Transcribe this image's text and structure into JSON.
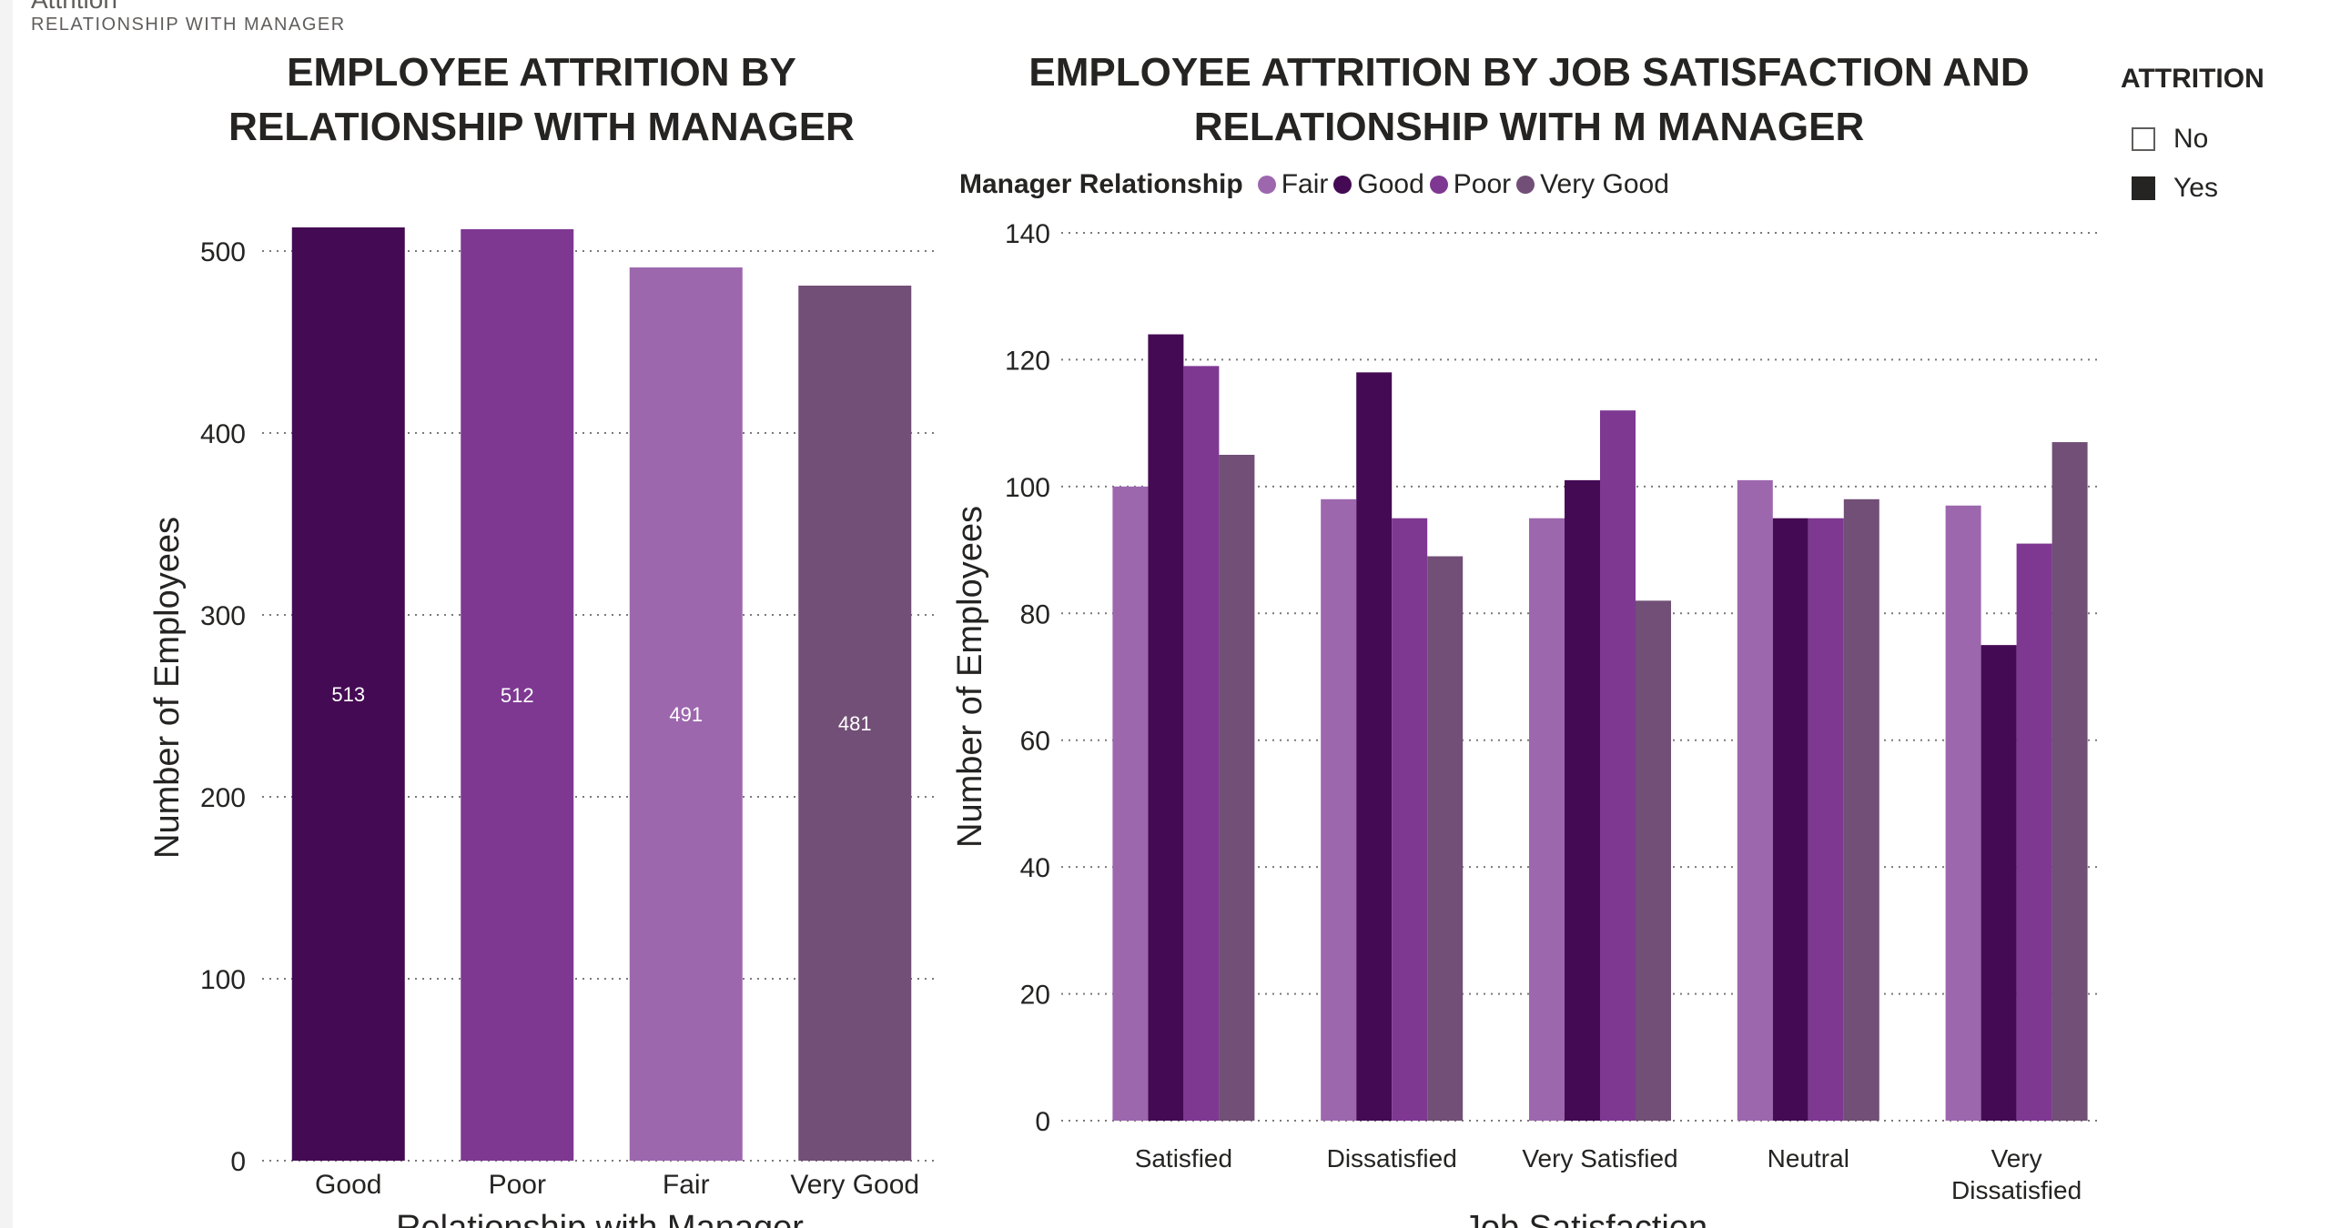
{
  "header": {
    "title": "Attrition",
    "subtitle": "RELATIONSHIP WITH MANAGER"
  },
  "attrition_slicer": {
    "title": "ATTRITION",
    "options": [
      {
        "label": "No",
        "checked": false
      },
      {
        "label": "Yes",
        "checked": true
      }
    ]
  },
  "colors": {
    "Fair": "#9d67ae",
    "Good": "#450a54",
    "Poor": "#7e3892",
    "Very Good": "#714f76"
  },
  "chart_data": [
    {
      "type": "bar",
      "title": "EMPLOYEE ATTRITION BY RELATIONSHIP WITH MANAGER",
      "xlabel": "Relationship with Manager",
      "ylabel": "Number of Employees",
      "categories": [
        "Good",
        "Poor",
        "Fair",
        "Very Good"
      ],
      "values": [
        513,
        512,
        491,
        481
      ],
      "data_labels": [
        "513",
        "512",
        "491",
        "481"
      ],
      "ylim": [
        0,
        520
      ],
      "yticks": [
        0,
        100,
        200,
        300,
        400,
        500
      ],
      "grid": true
    },
    {
      "type": "bar",
      "title": "EMPLOYEE ATTRITION BY JOB SATISFACTION AND RELATIONSHIP WITH M MANAGER",
      "xlabel": "Job Satisfaction",
      "ylabel": "Number of Employees",
      "legend_title": "Manager Relationship",
      "legend_position": "top-left",
      "categories": [
        "Satisfied",
        "Dissatisfied",
        "Very Satisfied",
        "Neutral",
        "Very Dissatisfied"
      ],
      "series": [
        {
          "name": "Fair",
          "values": [
            100,
            98,
            95,
            101,
            97
          ]
        },
        {
          "name": "Good",
          "values": [
            124,
            118,
            101,
            95,
            75
          ]
        },
        {
          "name": "Poor",
          "values": [
            119,
            95,
            112,
            95,
            91
          ]
        },
        {
          "name": "Very Good",
          "values": [
            105,
            89,
            82,
            98,
            107
          ]
        }
      ],
      "ylim": [
        0,
        140
      ],
      "yticks": [
        0,
        20,
        40,
        60,
        80,
        100,
        120,
        140
      ],
      "grid": true
    }
  ]
}
